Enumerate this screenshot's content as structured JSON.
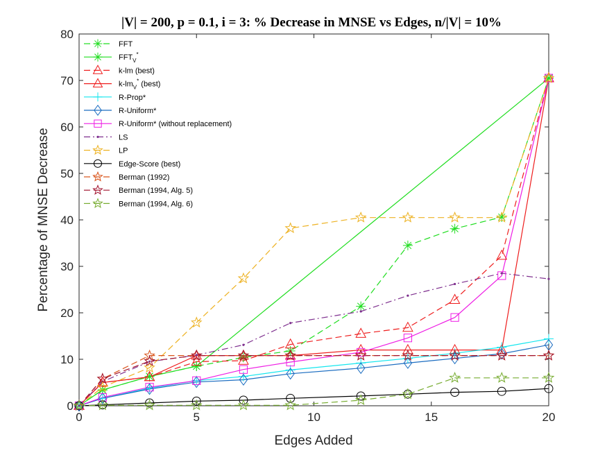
{
  "chart_data": {
    "type": "line",
    "title": "|V| = 200, p = 0.1, i = 3: % Decrease in MNSE vs Edges, n/|V| = 10%",
    "xlabel": "Edges Added",
    "ylabel": "Percentage of MNSE Decrease",
    "xlim": [
      0,
      20
    ],
    "ylim": [
      0,
      80
    ],
    "xticks": [
      0,
      5,
      10,
      15,
      20
    ],
    "yticks": [
      0,
      10,
      20,
      30,
      40,
      50,
      60,
      70,
      80
    ],
    "grid": false,
    "legend_position": "top-left",
    "series": [
      {
        "name": "FFT",
        "legend_label": {
          "main": "FFT",
          "sub": "",
          "sup": ""
        },
        "color": "#1fdd1f",
        "dash": "dashed",
        "marker": "asterisk",
        "x": [
          0,
          1,
          3,
          5,
          7,
          9,
          12,
          14,
          16,
          18,
          20
        ],
        "y": [
          0,
          3.4,
          6.3,
          8.5,
          10.4,
          11.8,
          21.4,
          34.5,
          38.1,
          40.6,
          70.5
        ]
      },
      {
        "name": "FFTV*",
        "legend_label": {
          "main": "FFT",
          "sub": "V",
          "sup": "*"
        },
        "color": "#1fdd1f",
        "dash": "solid",
        "marker": "asterisk",
        "x": [
          0,
          1,
          3,
          5,
          20
        ],
        "y": [
          0,
          3.4,
          6.3,
          8.5,
          70.5
        ]
      },
      {
        "name": "k-lm (best)",
        "legend_label": {
          "main": "k-lm (best)",
          "sub": "",
          "sup": ""
        },
        "color": "#ee1c1c",
        "dash": "dashed",
        "marker": "triangle",
        "x": [
          0,
          1,
          3,
          5,
          7,
          9,
          12,
          14,
          16,
          18,
          20
        ],
        "y": [
          0,
          5.0,
          6.2,
          9.5,
          9.7,
          13.2,
          15.5,
          16.8,
          22.8,
          32.3,
          70.5
        ]
      },
      {
        "name": "k-lmV* (best)",
        "legend_label": {
          "main": "k-lm",
          "sub": "V",
          "sup": "*",
          "tail": " (best)"
        },
        "color": "#ee1c1c",
        "dash": "solid",
        "marker": "triangle",
        "x": [
          0,
          1,
          3,
          5,
          7,
          9,
          12,
          14,
          16,
          18,
          20
        ],
        "y": [
          0,
          5.0,
          6.2,
          10.8,
          10.8,
          10.8,
          12.0,
          12.0,
          12.0,
          12.0,
          70.5
        ]
      },
      {
        "name": "R-Prop*",
        "legend_label": {
          "main": "R-Prop*",
          "sub": "",
          "sup": ""
        },
        "color": "#14e6ee",
        "dash": "solid",
        "marker": "plus",
        "x": [
          0,
          1,
          3,
          5,
          7,
          9,
          12,
          14,
          16,
          18,
          20
        ],
        "y": [
          0,
          1.6,
          3.8,
          5.4,
          6.3,
          7.7,
          9.2,
          10.2,
          11.3,
          12.6,
          14.4
        ]
      },
      {
        "name": "R-Uniform*",
        "legend_label": {
          "main": "R-Uniform*",
          "sub": "",
          "sup": ""
        },
        "color": "#1a6cc0",
        "dash": "solid",
        "marker": "diamond",
        "x": [
          0,
          1,
          3,
          5,
          7,
          9,
          12,
          14,
          16,
          18,
          20
        ],
        "y": [
          0,
          1.6,
          3.6,
          5.1,
          5.6,
          6.9,
          8.1,
          9.2,
          10.2,
          11.2,
          13.1
        ]
      },
      {
        "name": "R-Uniform* (without replacement)",
        "legend_label": {
          "main": "R-Uniform* (without replacement)",
          "sub": "",
          "sup": ""
        },
        "color": "#ee1ce4",
        "dash": "solid",
        "marker": "square",
        "x": [
          0,
          1,
          3,
          5,
          7,
          9,
          12,
          14,
          16,
          18,
          20
        ],
        "y": [
          0,
          1.8,
          4.0,
          5.4,
          7.8,
          9.4,
          11.5,
          14.6,
          19.0,
          28.0,
          70.5
        ]
      },
      {
        "name": "LS",
        "legend_label": {
          "main": "LS",
          "sub": "",
          "sup": ""
        },
        "color": "#7e2f8e",
        "dash": "dashdot",
        "marker": "dot",
        "x": [
          0,
          1,
          3,
          5,
          7,
          9,
          12,
          14,
          16,
          18,
          20
        ],
        "y": [
          0,
          5.2,
          9.5,
          10.9,
          13.1,
          17.8,
          20.3,
          23.7,
          26.2,
          28.5,
          27.3
        ]
      },
      {
        "name": "LP",
        "legend_label": {
          "main": "LP",
          "sub": "",
          "sup": ""
        },
        "color": "#edb120",
        "dash": "dashed",
        "marker": "star",
        "x": [
          0,
          1,
          3,
          5,
          7,
          9,
          12,
          14,
          16,
          18,
          20
        ],
        "y": [
          0,
          4.0,
          8.2,
          17.9,
          27.4,
          38.2,
          40.5,
          40.5,
          40.5,
          40.5,
          70.5
        ]
      },
      {
        "name": "Edge-Score (best)",
        "legend_label": {
          "main": "Edge-Score (best)",
          "sub": "",
          "sup": ""
        },
        "color": "#000000",
        "dash": "solid",
        "marker": "circle",
        "x": [
          0,
          1,
          3,
          5,
          7,
          9,
          12,
          14,
          16,
          18,
          20
        ],
        "y": [
          0,
          0.2,
          0.6,
          1.0,
          1.2,
          1.6,
          2.1,
          2.5,
          2.9,
          3.1,
          3.7
        ]
      },
      {
        "name": "Berman (1992)",
        "legend_label": {
          "main": "Berman (1992)",
          "sub": "",
          "sup": ""
        },
        "color": "#d95319",
        "dash": "dashed",
        "marker": "star",
        "x": [
          0,
          1,
          3,
          5,
          7,
          9,
          12,
          14,
          16,
          18,
          20
        ],
        "y": [
          0,
          5.8,
          10.8,
          10.8,
          10.8,
          10.8,
          10.8,
          10.8,
          10.8,
          10.8,
          10.8
        ]
      },
      {
        "name": "Berman (1994, Alg. 5)",
        "legend_label": {
          "main": "Berman (1994, Alg. 5)",
          "sub": "",
          "sup": ""
        },
        "color": "#a2142f",
        "dash": "dashed",
        "marker": "star",
        "x": [
          0,
          1,
          3,
          5,
          7,
          9,
          12,
          14,
          16,
          18,
          20
        ],
        "y": [
          0,
          5.8,
          9.6,
          10.8,
          10.8,
          10.8,
          10.8,
          10.8,
          10.8,
          10.8,
          10.8
        ]
      },
      {
        "name": "Berman (1994, Alg. 6)",
        "legend_label": {
          "main": "Berman (1994, Alg. 6)",
          "sub": "",
          "sup": ""
        },
        "color": "#77ac30",
        "dash": "dashed",
        "marker": "star",
        "x": [
          0,
          1,
          3,
          5,
          7,
          9,
          12,
          14,
          16,
          18,
          20
        ],
        "y": [
          0,
          0.1,
          0.1,
          0.1,
          0.1,
          0.1,
          1.2,
          2.5,
          6.0,
          6.0,
          6.0
        ]
      }
    ]
  }
}
